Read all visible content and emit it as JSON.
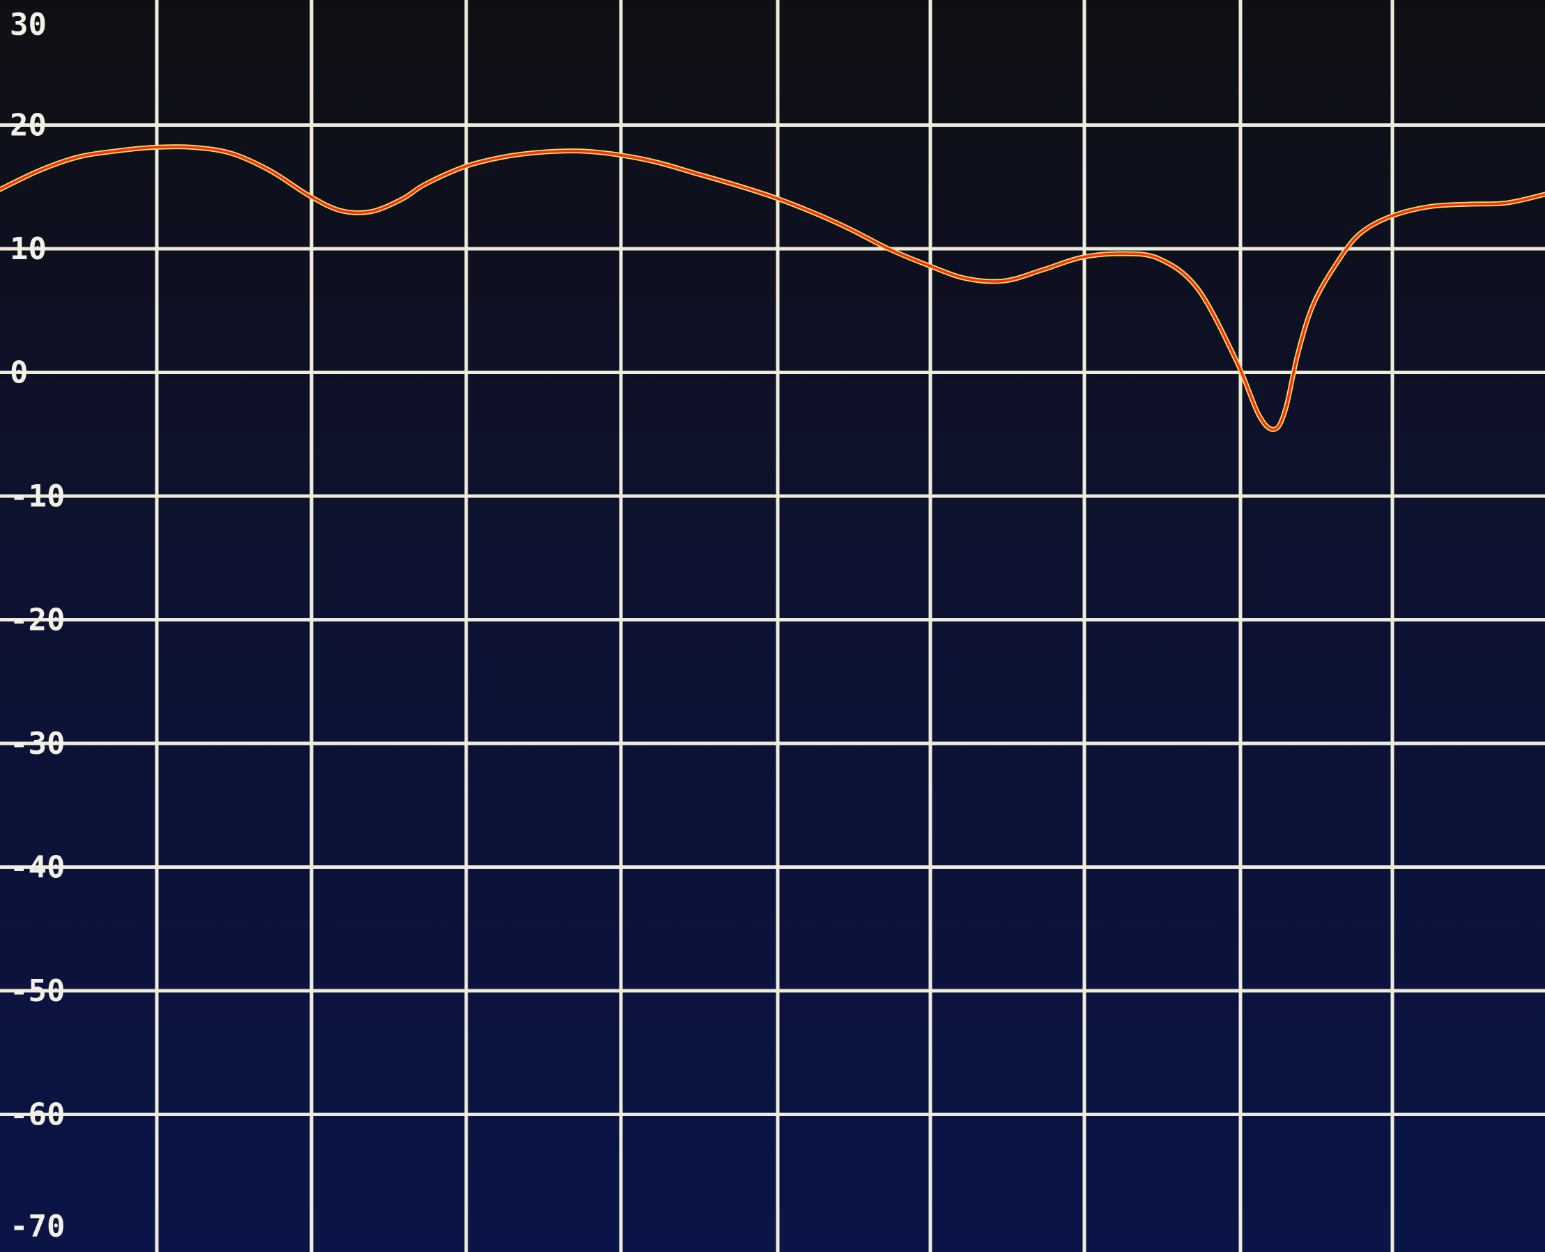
{
  "chart_data": {
    "type": "line",
    "title": "",
    "xlabel": "",
    "ylabel": "",
    "ylim": [
      -70,
      30
    ],
    "xlim": [
      0,
      10
    ],
    "y_ticks": [
      "30",
      "20",
      "10",
      "0",
      "-10",
      "-20",
      "-30",
      "-40",
      "-50",
      "-60",
      "-70"
    ],
    "grid": true,
    "vertical_divisions": 10,
    "colors": {
      "background": "#0c1236",
      "grid": "#ecebdc",
      "trace": "#ff2a1a",
      "trace_glow": "#e8e85a",
      "label": "#f3f1e6"
    },
    "series": [
      {
        "x": [
          0,
          0.25,
          0.5,
          0.75,
          1.0,
          1.25,
          1.5,
          1.75,
          2.0,
          2.2,
          2.4,
          2.6,
          2.75,
          3.0,
          3.25,
          3.5,
          3.75,
          4.0,
          4.25,
          4.5,
          4.75,
          5.0,
          5.25,
          5.5,
          5.75,
          6.0,
          6.25,
          6.5,
          6.75,
          7.0,
          7.25,
          7.5,
          7.75,
          8.0,
          8.15,
          8.25,
          8.32,
          8.4,
          8.5,
          8.65,
          8.8,
          9.0,
          9.25,
          9.5,
          9.75,
          10.0
        ],
        "y": [
          14.8,
          16.3,
          17.4,
          17.9,
          18.2,
          18.2,
          17.7,
          16.3,
          14.3,
          13.1,
          13.0,
          14.0,
          15.2,
          16.6,
          17.4,
          17.8,
          17.9,
          17.6,
          17.0,
          16.1,
          15.2,
          14.2,
          13.0,
          11.6,
          10.0,
          8.7,
          7.6,
          7.4,
          8.3,
          9.3,
          9.6,
          9.2,
          6.8,
          1.0,
          -3.5,
          -4.6,
          -3.0,
          1.5,
          5.5,
          8.8,
          11.2,
          12.6,
          13.4,
          13.6,
          13.7,
          14.4
        ]
      }
    ]
  }
}
